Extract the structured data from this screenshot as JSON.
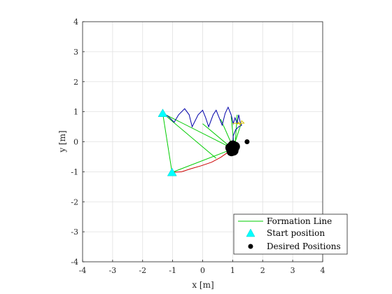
{
  "chart_data": {
    "type": "line",
    "title": "",
    "xlabel": "x [m]",
    "ylabel": "y [m]",
    "xlim": [
      -4,
      4
    ],
    "ylim": [
      -4,
      4
    ],
    "xticks": [
      -4,
      -3,
      -2,
      -1,
      0,
      1,
      2,
      3,
      4
    ],
    "yticks": [
      -4,
      -3,
      -2,
      -1,
      0,
      1,
      2,
      3,
      4
    ],
    "grid": true,
    "legend_position": "bottom-right",
    "colors": {
      "formation": "#00cc00",
      "start": "#00ffff",
      "desired": "#000000",
      "traj_blue": "#0000aa",
      "traj_red": "#cc0000",
      "traj_yellow": "#d4c000"
    },
    "legend": [
      {
        "label": "Formation Line",
        "marker": "line"
      },
      {
        "label": "Start position",
        "marker": "triangle"
      },
      {
        "label": "Desired Positions",
        "marker": "circle"
      }
    ],
    "start_positions": [
      [
        -1.33,
        0.95
      ],
      [
        -1.02,
        -1.02
      ]
    ],
    "desired_positions": [
      [
        1.48,
        0.0
      ]
    ],
    "desired_cluster": [
      [
        0.98,
        -0.18
      ],
      [
        1.05,
        -0.22
      ],
      [
        0.95,
        -0.26
      ],
      [
        1.03,
        -0.3
      ],
      [
        0.92,
        -0.2
      ],
      [
        1.08,
        -0.16
      ],
      [
        1.0,
        -0.12
      ],
      [
        0.96,
        -0.32
      ]
    ],
    "formation_lines": [
      [
        [
          -1.33,
          0.95
        ],
        [
          -1.02,
          -1.02
        ]
      ],
      [
        [
          -1.33,
          0.95
        ],
        [
          0.45,
          -0.55
        ]
      ],
      [
        [
          -1.33,
          0.95
        ],
        [
          0.95,
          -0.2
        ]
      ],
      [
        [
          -1.02,
          -1.02
        ],
        [
          0.98,
          -0.25
        ]
      ],
      [
        [
          0.0,
          0.6
        ],
        [
          0.98,
          -0.22
        ]
      ],
      [
        [
          0.6,
          0.75
        ],
        [
          1.02,
          -0.2
        ]
      ],
      [
        [
          0.95,
          0.85
        ],
        [
          1.05,
          -0.18
        ]
      ],
      [
        [
          1.15,
          0.9
        ],
        [
          1.08,
          -0.15
        ]
      ],
      [
        [
          1.28,
          0.6
        ],
        [
          1.02,
          -0.2
        ]
      ]
    ],
    "trajectories": [
      {
        "color_key": "traj_blue",
        "points": [
          [
            -1.33,
            0.95
          ],
          [
            -1.15,
            0.85
          ],
          [
            -0.95,
            0.65
          ],
          [
            -0.8,
            0.9
          ],
          [
            -0.6,
            1.1
          ],
          [
            -0.45,
            0.9
          ],
          [
            -0.35,
            0.5
          ],
          [
            -0.15,
            0.9
          ],
          [
            0.0,
            1.05
          ],
          [
            0.1,
            0.8
          ],
          [
            0.2,
            0.5
          ],
          [
            0.35,
            0.9
          ],
          [
            0.45,
            1.05
          ],
          [
            0.55,
            0.8
          ],
          [
            0.65,
            0.55
          ],
          [
            0.75,
            0.95
          ],
          [
            0.85,
            1.15
          ],
          [
            0.95,
            0.9
          ],
          [
            1.02,
            0.6
          ],
          [
            1.08,
            0.8
          ],
          [
            1.15,
            0.6
          ],
          [
            1.2,
            0.9
          ],
          [
            1.25,
            0.65
          ],
          [
            1.3,
            0.55
          ],
          [
            1.2,
            0.5
          ],
          [
            1.1,
            0.4
          ],
          [
            1.02,
            0.2
          ],
          [
            1.0,
            -0.15
          ]
        ]
      },
      {
        "color_key": "traj_red",
        "points": [
          [
            -1.02,
            -1.02
          ],
          [
            -0.7,
            -1.0
          ],
          [
            -0.4,
            -0.9
          ],
          [
            -0.05,
            -0.8
          ],
          [
            0.3,
            -0.68
          ],
          [
            0.6,
            -0.52
          ],
          [
            0.8,
            -0.38
          ],
          [
            0.95,
            -0.25
          ]
        ]
      },
      {
        "color_key": "traj_yellow",
        "points": [
          [
            1.0,
            0.6
          ],
          [
            1.1,
            0.62
          ],
          [
            1.22,
            0.6
          ],
          [
            1.38,
            0.62
          ],
          [
            1.3,
            0.7
          ],
          [
            1.25,
            0.55
          ],
          [
            1.2,
            0.65
          ],
          [
            1.15,
            0.58
          ]
        ]
      }
    ]
  }
}
